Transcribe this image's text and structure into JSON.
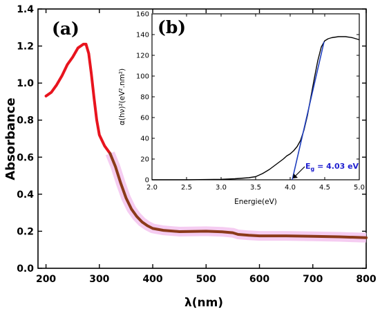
{
  "colors": {
    "main_curve": "#e8141e",
    "overlay_curve": "#8b3a1a",
    "highlight": "#f4c6ef",
    "inset_curve": "#000000",
    "tangent": "#1f3fbf",
    "annotation": "#1f1fd0"
  },
  "chart_data": [
    {
      "panel": "(a)",
      "type": "line",
      "xlabel": "λ(nm)",
      "ylabel": "Absorbance",
      "xlim": [
        185,
        800
      ],
      "ylim": [
        0.0,
        1.4
      ],
      "xticks": [
        200,
        300,
        400,
        500,
        600,
        700,
        800
      ],
      "xtick_labels": [
        "200",
        "300",
        "400",
        "500",
        "600",
        "700",
        "800"
      ],
      "yticks": [
        0.0,
        0.2,
        0.4,
        0.6,
        0.8,
        1.0,
        1.2,
        1.4
      ],
      "ytick_labels": [
        "0.0",
        "0.2",
        "0.4",
        "0.6",
        "0.8",
        "1.0",
        "1.2",
        "1.4"
      ],
      "series": [
        {
          "x": [
            200,
            210,
            220,
            230,
            240,
            250,
            260,
            265,
            270,
            275,
            280,
            285,
            290,
            295,
            300,
            310,
            320
          ],
          "y": [
            0.93,
            0.95,
            0.99,
            1.04,
            1.1,
            1.14,
            1.19,
            1.2,
            1.21,
            1.21,
            1.16,
            1.05,
            0.92,
            0.8,
            0.72,
            0.66,
            0.62
          ]
        },
        {
          "x": [
            320,
            330,
            340,
            350,
            360,
            370,
            380,
            390,
            400,
            420,
            450,
            500,
            530,
            550,
            560,
            580,
            600,
            650,
            700,
            750,
            800
          ],
          "y": [
            0.62,
            0.55,
            0.46,
            0.38,
            0.32,
            0.28,
            0.25,
            0.23,
            0.215,
            0.205,
            0.198,
            0.2,
            0.197,
            0.192,
            0.183,
            0.178,
            0.175,
            0.175,
            0.173,
            0.17,
            0.165
          ]
        }
      ]
    },
    {
      "panel": "(b)",
      "type": "line",
      "xlabel": "Energie(eV)",
      "ylabel": "α(hν)²(eV².nm²)",
      "xlim": [
        2.0,
        5.0
      ],
      "ylim": [
        0,
        160
      ],
      "xticks": [
        2.0,
        2.5,
        3.0,
        3.5,
        4.0,
        4.5,
        5.0
      ],
      "xtick_labels": [
        "2.0",
        "2.5",
        "3.0",
        "3.5",
        "4.0",
        "4.5",
        "5.0"
      ],
      "yticks": [
        0,
        20,
        40,
        60,
        80,
        100,
        120,
        140,
        160
      ],
      "ytick_labels": [
        "0",
        "20",
        "40",
        "60",
        "80",
        "100",
        "120",
        "140",
        "160"
      ],
      "series": [
        {
          "x": [
            2.0,
            2.5,
            3.0,
            3.2,
            3.4,
            3.5,
            3.6,
            3.7,
            3.8,
            3.9,
            3.95,
            4.0,
            4.05,
            4.1,
            4.15,
            4.2,
            4.25,
            4.3,
            4.35,
            4.4,
            4.45,
            4.5,
            4.55,
            4.6,
            4.7,
            4.8,
            4.9,
            5.0
          ],
          "y": [
            0,
            0,
            0.5,
            1,
            2,
            3,
            6,
            10,
            15,
            20,
            23,
            25,
            28,
            32,
            38,
            48,
            62,
            80,
            98,
            115,
            128,
            134,
            136,
            137,
            138,
            138,
            137,
            135
          ]
        },
        {
          "x": [
            4.03,
            4.49
          ],
          "y": [
            0,
            133
          ]
        }
      ],
      "annotation": {
        "text_main": "E",
        "text_sub": "g",
        "text_value": " = 4.03 eV",
        "x": 4.03,
        "y": 0
      }
    }
  ]
}
